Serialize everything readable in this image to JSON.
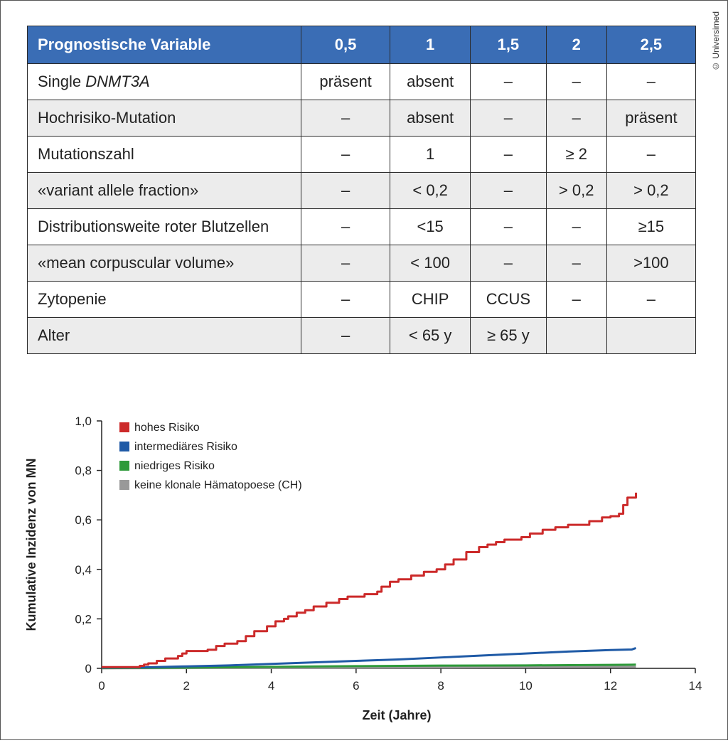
{
  "credit": "© Universimed",
  "table": {
    "headers": [
      "Prognostische Variable",
      "0,5",
      "1",
      "1,5",
      "2",
      "2,5"
    ],
    "rows": [
      {
        "label_plain": "Single ",
        "label_italic": "DNMT3A",
        "cells": [
          "präsent",
          "absent",
          "–",
          "–",
          "–"
        ]
      },
      {
        "label_plain": "Hochrisiko-Mutation",
        "label_italic": "",
        "cells": [
          "–",
          "absent",
          "–",
          "–",
          "präsent"
        ]
      },
      {
        "label_plain": "Mutationszahl",
        "label_italic": "",
        "cells": [
          "–",
          "1",
          "–",
          "≥ 2",
          "–"
        ]
      },
      {
        "label_plain": "«variant allele fraction»",
        "label_italic": "",
        "cells": [
          "–",
          "< 0,2",
          "–",
          "> 0,2",
          "> 0,2"
        ]
      },
      {
        "label_plain": "Distributionsweite roter Blutzellen",
        "label_italic": "",
        "cells": [
          "–",
          "<15",
          "–",
          "–",
          "≥15"
        ]
      },
      {
        "label_plain": "«mean corpuscular volume»",
        "label_italic": "",
        "cells": [
          "–",
          "< 100",
          "–",
          "–",
          ">100"
        ]
      },
      {
        "label_plain": "Zytopenie",
        "label_italic": "",
        "cells": [
          "–",
          "CHIP",
          "CCUS",
          "–",
          "–"
        ]
      },
      {
        "label_plain": "Alter",
        "label_italic": "",
        "cells": [
          "–",
          "< 65 y",
          "≥ 65 y",
          "",
          ""
        ]
      }
    ]
  },
  "chart_data": {
    "type": "line",
    "title": "",
    "xlabel": "Zeit (Jahre)",
    "ylabel": "Kumulative Inzidenz von MN",
    "xlim": [
      0,
      14
    ],
    "ylim": [
      0,
      1.0
    ],
    "xticks": [
      "0",
      "2",
      "4",
      "6",
      "8",
      "10",
      "12",
      "14"
    ],
    "yticks": [
      "0",
      "0,2",
      "0,4",
      "0,6",
      "0,8",
      "1,0"
    ],
    "grid": false,
    "legend_position": "top-left",
    "series": [
      {
        "name": "hohes Risiko",
        "color": "#cc2a2a",
        "step": true,
        "points": [
          [
            0,
            0.005
          ],
          [
            0.7,
            0.005
          ],
          [
            0.9,
            0.01
          ],
          [
            1.0,
            0.015
          ],
          [
            1.1,
            0.02
          ],
          [
            1.3,
            0.03
          ],
          [
            1.5,
            0.04
          ],
          [
            1.8,
            0.05
          ],
          [
            1.9,
            0.06
          ],
          [
            2.0,
            0.07
          ],
          [
            2.5,
            0.075
          ],
          [
            2.7,
            0.09
          ],
          [
            2.9,
            0.1
          ],
          [
            3.2,
            0.11
          ],
          [
            3.4,
            0.13
          ],
          [
            3.6,
            0.15
          ],
          [
            3.9,
            0.17
          ],
          [
            4.1,
            0.19
          ],
          [
            4.3,
            0.2
          ],
          [
            4.4,
            0.21
          ],
          [
            4.6,
            0.225
          ],
          [
            4.8,
            0.235
          ],
          [
            5.0,
            0.25
          ],
          [
            5.3,
            0.265
          ],
          [
            5.6,
            0.28
          ],
          [
            5.8,
            0.29
          ],
          [
            6.2,
            0.3
          ],
          [
            6.5,
            0.31
          ],
          [
            6.6,
            0.33
          ],
          [
            6.8,
            0.35
          ],
          [
            7.0,
            0.36
          ],
          [
            7.3,
            0.375
          ],
          [
            7.6,
            0.39
          ],
          [
            7.9,
            0.4
          ],
          [
            8.1,
            0.42
          ],
          [
            8.3,
            0.44
          ],
          [
            8.6,
            0.47
          ],
          [
            8.9,
            0.49
          ],
          [
            9.1,
            0.5
          ],
          [
            9.3,
            0.51
          ],
          [
            9.5,
            0.52
          ],
          [
            9.9,
            0.53
          ],
          [
            10.1,
            0.545
          ],
          [
            10.4,
            0.56
          ],
          [
            10.7,
            0.57
          ],
          [
            11.0,
            0.58
          ],
          [
            11.5,
            0.595
          ],
          [
            11.8,
            0.61
          ],
          [
            12.0,
            0.615
          ],
          [
            12.2,
            0.625
          ],
          [
            12.3,
            0.66
          ],
          [
            12.4,
            0.69
          ],
          [
            12.6,
            0.71
          ]
        ]
      },
      {
        "name": "intermediäres Risiko",
        "color": "#1f5aa6",
        "step": false,
        "points": [
          [
            0,
            0.003
          ],
          [
            1,
            0.004
          ],
          [
            2,
            0.008
          ],
          [
            3,
            0.012
          ],
          [
            4,
            0.018
          ],
          [
            5,
            0.024
          ],
          [
            6,
            0.03
          ],
          [
            7,
            0.036
          ],
          [
            8,
            0.044
          ],
          [
            9,
            0.052
          ],
          [
            10,
            0.06
          ],
          [
            11,
            0.068
          ],
          [
            12,
            0.074
          ],
          [
            12.5,
            0.076
          ],
          [
            12.6,
            0.082
          ]
        ]
      },
      {
        "name": "niedriges Risiko",
        "color": "#2e9a3a",
        "step": false,
        "points": [
          [
            0,
            0.001
          ],
          [
            2,
            0.003
          ],
          [
            4,
            0.006
          ],
          [
            6,
            0.009
          ],
          [
            8,
            0.011
          ],
          [
            10,
            0.012
          ],
          [
            12,
            0.014
          ],
          [
            12.6,
            0.015
          ]
        ]
      },
      {
        "name": "keine klonale Hämatopoese (CH)",
        "color": "#999999",
        "step": false,
        "points": [
          [
            0,
            0.0005
          ],
          [
            4,
            0.002
          ],
          [
            8,
            0.004
          ],
          [
            12.6,
            0.006
          ]
        ]
      }
    ]
  }
}
